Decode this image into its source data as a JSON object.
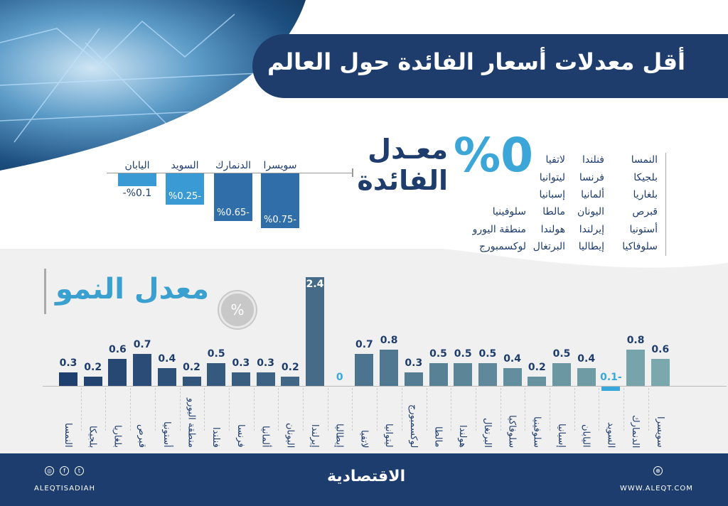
{
  "title": "أقل معدلات أسعار الفائدة حول العالم",
  "interest": {
    "zero_label": "%0",
    "heading_line1": "معـدل",
    "heading_line2": "الفائدة",
    "zero_countries_columns": [
      [
        "النمسا",
        "بلجيكا",
        "بلغاريا",
        "قبرص",
        "أستونيا",
        "سلوفاكيا"
      ],
      [
        "فنلندا",
        "فرنسا",
        "ألمانيا",
        "اليونان",
        "إيرلندا",
        "إيطاليا"
      ],
      [
        "لاتفيا",
        "ليتوانيا",
        "إسبانيا",
        "مالطا",
        "هولندا",
        "البرتغال"
      ],
      [
        "سلوفينيا",
        "منطقة اليورو",
        "لوكسمبورج"
      ]
    ]
  },
  "chart_data": [
    {
      "type": "bar",
      "title": "",
      "orientation": "vertical-negative",
      "categories": [
        "سويسرا",
        "الدنمارك",
        "السويد",
        "اليابان"
      ],
      "values": [
        -0.75,
        -0.65,
        -0.25,
        -0.1
      ],
      "value_labels": [
        "%0.75-",
        "%0.65-",
        "%0.25-",
        "%0.1-"
      ],
      "unit": "%",
      "color": "#2f7db5"
    },
    {
      "type": "bar",
      "title": "معدل النمو",
      "unit_badge": "%",
      "categories": [
        "النمسا",
        "بلجيكا",
        "بلغاريا",
        "قبرص",
        "أستونيا",
        "منطقة اليورو",
        "فنلندا",
        "فرنسا",
        "ألمانيا",
        "اليونان",
        "إيرلندا",
        "إيطاليا",
        "لاتفيا",
        "ليتوانيا",
        "لوكسمبورج",
        "مالطا",
        "هولندا",
        "البرتغال",
        "سلوفاكيا",
        "سلوفينيا",
        "إسبانيا",
        "اليابان",
        "السويد",
        "الدنمارك",
        "سويسرا"
      ],
      "values": [
        0.3,
        0.2,
        0.6,
        0.7,
        0.4,
        0.2,
        0.5,
        0.3,
        0.3,
        0.2,
        2.4,
        0,
        0.7,
        0.8,
        0.3,
        0.5,
        0.5,
        0.5,
        0.4,
        0.2,
        0.5,
        0.4,
        -0.1,
        0.8,
        0.6
      ],
      "value_labels": [
        "0.3",
        "0.2",
        "0.6",
        "0.7",
        "0.4",
        "0.2",
        "0.5",
        "0.3",
        "0.3",
        "0.2",
        "2.4",
        "0",
        "0.7",
        "0.8",
        "0.3",
        "0.5",
        "0.5",
        "0.5",
        "0.4",
        "0.2",
        "0.5",
        "0.4",
        "0.1-",
        "0.8",
        "0.6"
      ],
      "colors": {
        "start": "#1f3f6e",
        "end": "#7aa8ad",
        "negative": "#3aa7dc"
      }
    }
  ],
  "footer": {
    "handle": "ALEQTISADIAH",
    "logo": "الاقتصادية",
    "website": "WWW.ALEQT.COM"
  }
}
